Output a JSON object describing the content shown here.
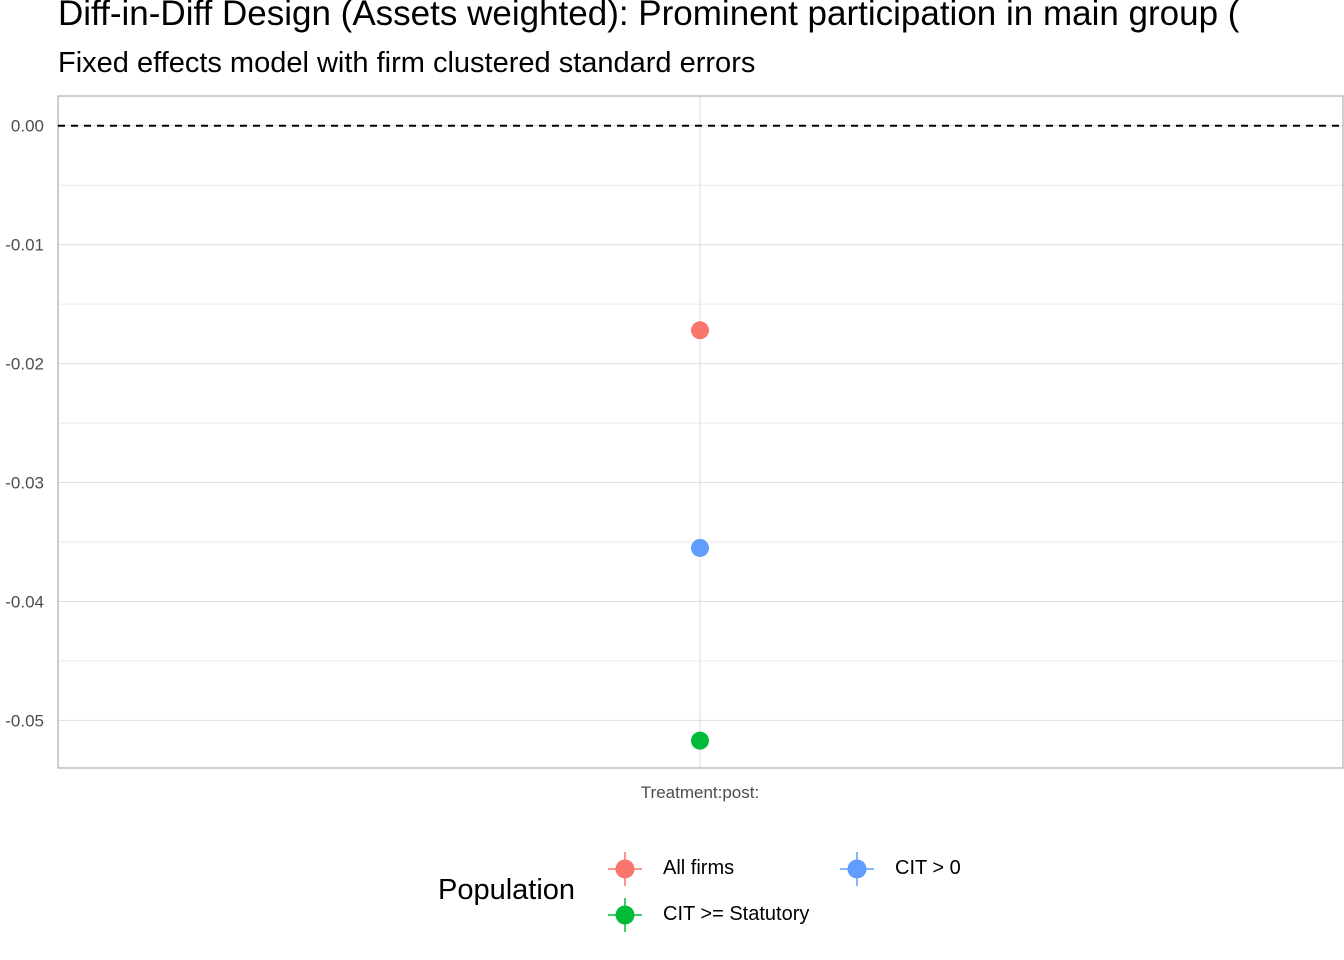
{
  "chart_data": {
    "type": "scatter",
    "title": "Diff-in-Diff Design (Assets weighted): Prominent participation in main group (",
    "subtitle": "Fixed effects model with firm clustered standard errors",
    "xlabel": "",
    "ylabel": "",
    "categories": [
      "Treatment:post:"
    ],
    "ylim": [
      -0.054,
      0.0025
    ],
    "yticks": [
      0.0,
      -0.01,
      -0.02,
      -0.03,
      -0.04,
      -0.05
    ],
    "ytick_labels": [
      "0.00",
      "-0.01",
      "-0.02",
      "-0.03",
      "-0.04",
      "-0.05"
    ],
    "reference_line": {
      "y": 0.0,
      "style": "dashed"
    },
    "grid": true,
    "legend": {
      "title": "Population",
      "placement": "bottom"
    },
    "series": [
      {
        "name": "All firms",
        "color": "#F8766D",
        "values": [
          -0.0172
        ]
      },
      {
        "name": "CIT >= Statutory",
        "color": "#00BA38",
        "values": [
          -0.0517
        ]
      },
      {
        "name": "CIT > 0",
        "color": "#619CFF",
        "values": [
          -0.0355
        ]
      }
    ]
  }
}
